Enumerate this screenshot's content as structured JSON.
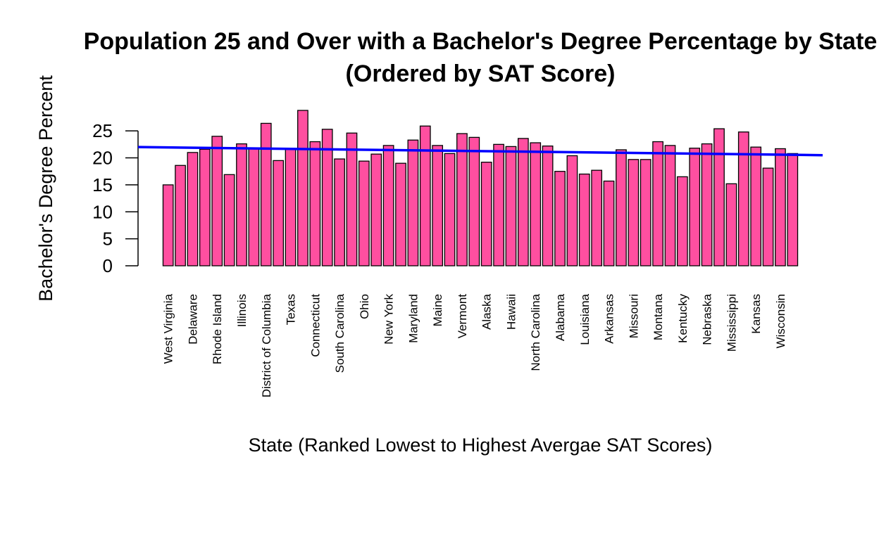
{
  "chart_data": {
    "type": "bar",
    "title": "Population 25 and Over with a Bachelor's Degree Percentage by State",
    "subtitle": "(Ordered by SAT Score)",
    "xlabel": "State (Ranked Lowest to Highest Avergae SAT Scores)",
    "ylabel": "Bachelor's Degree Percent",
    "ylim": [
      0,
      28.8
    ],
    "yticks": [
      0,
      5,
      10,
      15,
      20,
      25
    ],
    "grid": false,
    "legend": "none",
    "bar_color": "#ff4fa0",
    "bar_outline": "#000000",
    "trend_color": "#0000ff",
    "trend_line": {
      "start": 22.0,
      "end": 20.5
    },
    "categories": [
      "West Virginia",
      "",
      "Delaware",
      "",
      "Rhode Island",
      "",
      "Illinois",
      "",
      "District of Columbia",
      "",
      "Texas",
      "",
      "Connecticut",
      "",
      "South Carolina",
      "",
      "Ohio",
      "",
      "New York",
      "",
      "Maryland",
      "",
      "Maine",
      "",
      "Vermont",
      "",
      "Alaska",
      "",
      "Hawaii",
      "",
      "North Carolina",
      "",
      "Alabama",
      "",
      "Louisiana",
      "",
      "Arkansas",
      "",
      "Missouri",
      "",
      "Montana",
      "",
      "Kentucky",
      "",
      "Nebraska",
      "",
      "Mississippi",
      "",
      "Kansas",
      "",
      "Wisconsin",
      ""
    ],
    "values": [
      15.0,
      18.6,
      21.0,
      21.6,
      24.0,
      16.9,
      22.6,
      21.7,
      26.4,
      19.5,
      21.6,
      28.8,
      23.0,
      25.3,
      19.8,
      24.6,
      19.4,
      20.7,
      22.3,
      19.0,
      23.3,
      25.9,
      22.3,
      20.8,
      24.5,
      23.8,
      19.2,
      22.5,
      22.1,
      23.6,
      22.8,
      22.2,
      17.5,
      20.4,
      17.0,
      17.7,
      15.7,
      21.5,
      19.7,
      19.7,
      23.0,
      22.3,
      16.5,
      21.8,
      22.6,
      25.4,
      15.2,
      24.8,
      22.0,
      18.1,
      21.7,
      20.8
    ]
  }
}
